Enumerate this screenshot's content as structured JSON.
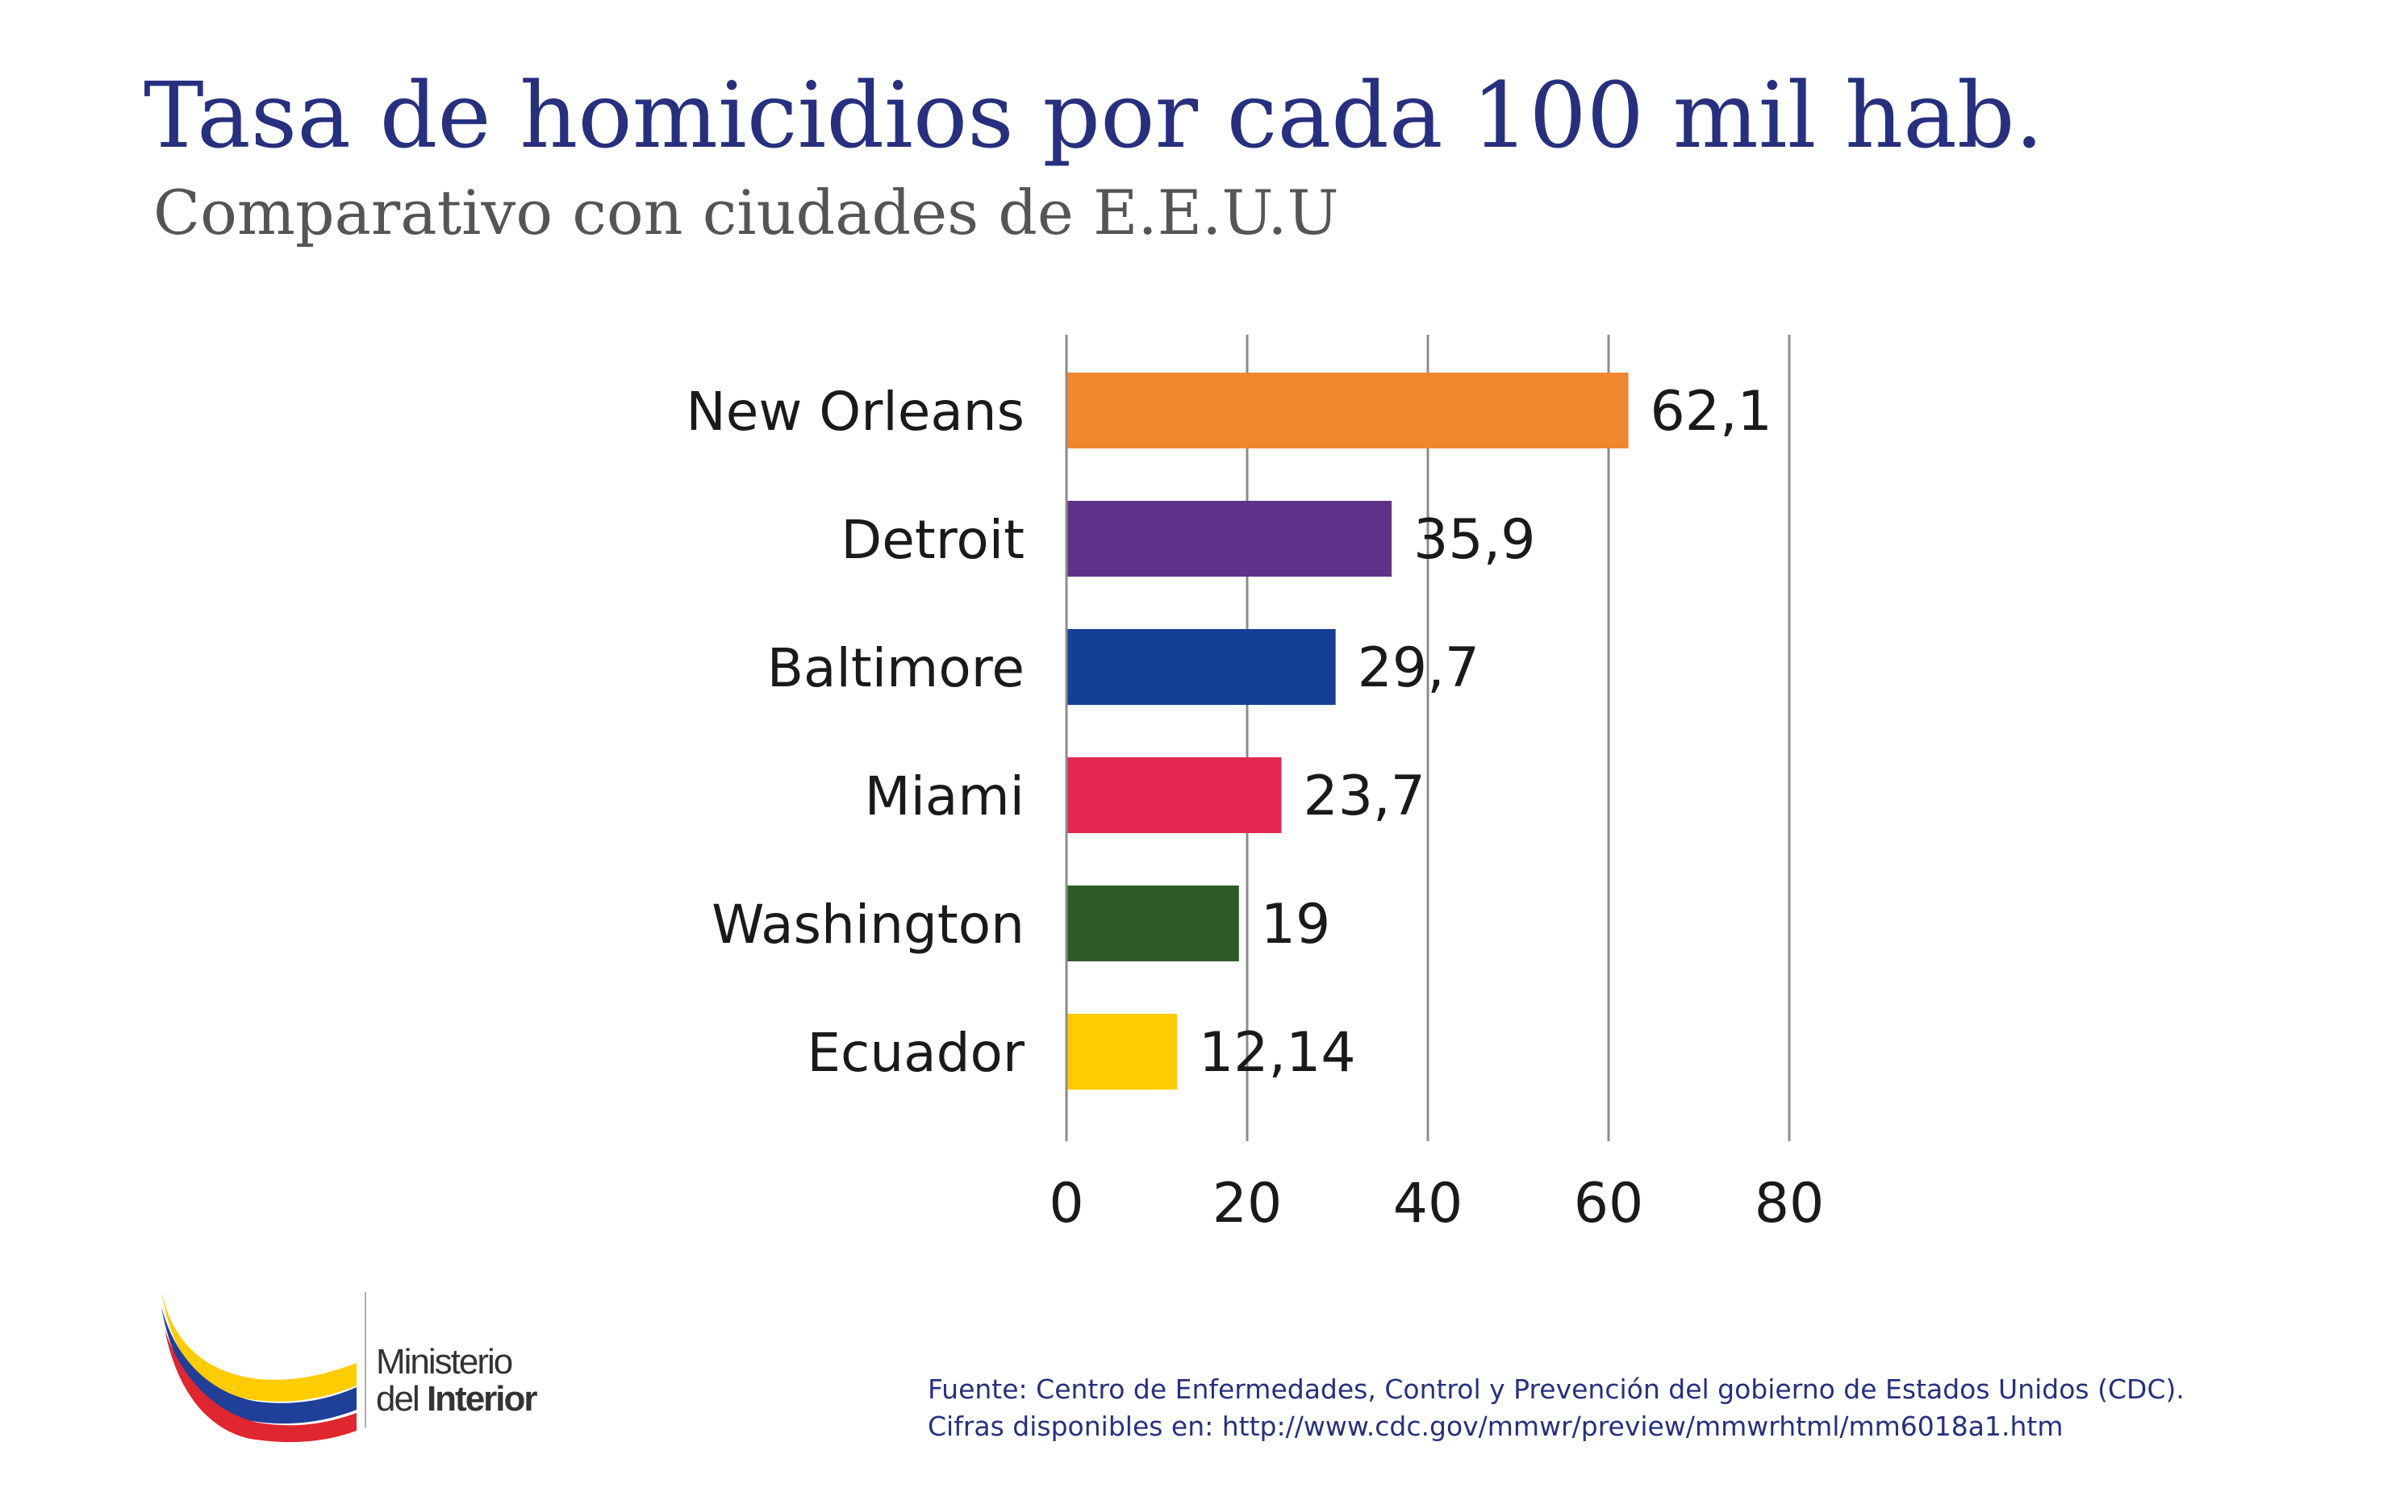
{
  "title": "Tasa de homicidios por cada 100 mil hab.",
  "subtitle": "Comparativo con ciudades de E.E.U.U",
  "chart_data": {
    "type": "bar",
    "orientation": "horizontal",
    "categories": [
      "New Orleans",
      "Detroit",
      "Baltimore",
      "Miami",
      "Washington",
      "Ecuador"
    ],
    "values": [
      62.1,
      35.9,
      29.7,
      23.7,
      19,
      12.14
    ],
    "value_labels": [
      "62,1",
      "35,9",
      "29,7",
      "23,7",
      "19",
      "12,14"
    ],
    "colors": [
      "#f0872e",
      "#5e3288",
      "#143f96",
      "#e42750",
      "#2d5c26",
      "#ffcc00"
    ],
    "xlim": [
      0,
      80
    ],
    "xticks": [
      0,
      20,
      40,
      60,
      80
    ],
    "xtick_labels": [
      "0",
      "20",
      "40",
      "60",
      "80"
    ],
    "grid": "vertical",
    "legend": "none"
  },
  "logo": {
    "line1": "Ministerio",
    "line2_prefix": "del",
    "line2_bold": "Interior"
  },
  "source": {
    "line1": "Fuente: Centro de Enfermedades, Control y Prevención del gobierno de Estados Unidos (CDC).",
    "line2": "Cifras disponibles en: http://www.cdc.gov/mmwr/preview/mmwrhtml/mm6018a1.htm"
  }
}
